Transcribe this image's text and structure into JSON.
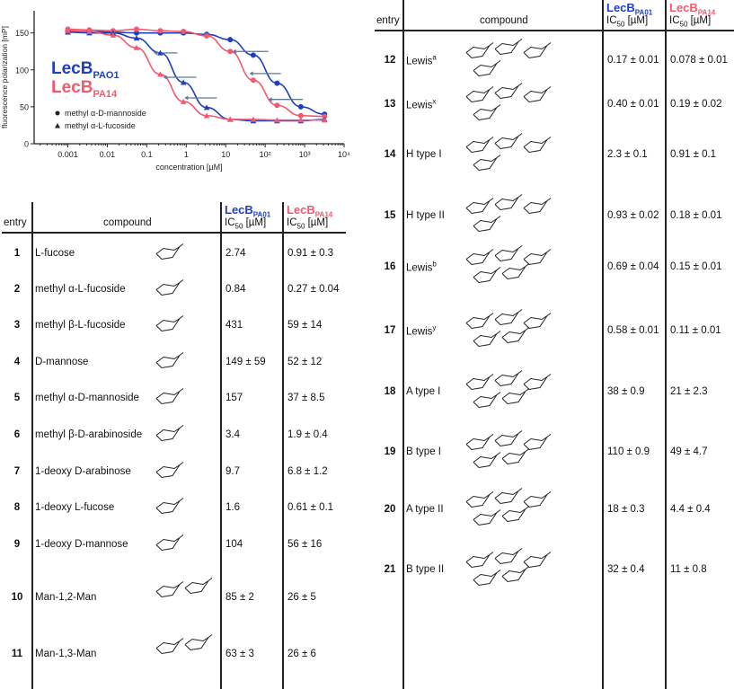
{
  "chart_data": {
    "type": "scatter",
    "xlabel": "concentration [µM]",
    "ylabel": "fluorescence polarization [mP]",
    "xscale": "log",
    "xlim": [
      0.00014,
      10000
    ],
    "ylim": [
      0,
      180
    ],
    "xticks": [
      "0.001",
      "0.01",
      "0.1",
      "1",
      "10",
      "10²",
      "10³",
      "10⁴"
    ],
    "yticks": [
      "0",
      "50",
      "100",
      "150"
    ],
    "grid": false,
    "legend_placement": "left",
    "legend_lectins": [
      {
        "label": "LecB",
        "sub": "PAO1",
        "color": "#1f3fbf"
      },
      {
        "label": "LecB",
        "sub": "PA14",
        "color": "#f05a6e"
      }
    ],
    "legend_markers": [
      {
        "marker": "circle",
        "label": "methyl α-D-mannoside"
      },
      {
        "marker": "triangle",
        "label": "methyl α-L-fucoside"
      }
    ],
    "x": [
      0.001,
      0.0035,
      0.014,
      0.055,
      0.22,
      0.85,
      3.3,
      13,
      50,
      200,
      800,
      3200
    ],
    "series": [
      {
        "lectin": "PAO1",
        "compound": "methyl α-D-mannoside",
        "marker": "circle",
        "color": "#1f3fbf",
        "values": [
          152,
          152,
          151,
          150,
          150,
          150,
          148,
          141,
          120,
          82,
          50,
          40
        ]
      },
      {
        "lectin": "PA14",
        "compound": "methyl α-D-mannoside",
        "marker": "circle",
        "color": "#f05a6e",
        "values": [
          155,
          154,
          153,
          155,
          153,
          152,
          146,
          125,
          86,
          52,
          38,
          37
        ]
      },
      {
        "lectin": "PAO1",
        "compound": "methyl α-L-fucoside",
        "marker": "triangle",
        "color": "#1f3fbf",
        "values": [
          151,
          150,
          150,
          143,
          123,
          83,
          49,
          33,
          31,
          31,
          31,
          33
        ]
      },
      {
        "lectin": "PA14",
        "compound": "methyl α-L-fucoside",
        "marker": "triangle",
        "color": "#f05a6e",
        "values": [
          153,
          152,
          147,
          130,
          94,
          57,
          38,
          33,
          33,
          32,
          32,
          32
        ]
      }
    ]
  },
  "table_header": {
    "entry": "entry",
    "compound": "compound",
    "lecb": "LecB",
    "pa01": "PA01",
    "pa14": "PA14",
    "ic50": "IC",
    "ic50_sub": "50",
    "unit": " [µM]"
  },
  "left_rows": [
    {
      "entry": "1",
      "compound": "L-fucose",
      "pa01": "2.74",
      "pa14": "0.91 ± 0.3",
      "rings": 1
    },
    {
      "entry": "2",
      "compound": "methyl α-L-fucoside",
      "pa01": "0.84",
      "pa14": "0.27 ± 0.04",
      "rings": 1
    },
    {
      "entry": "3",
      "compound": "methyl β-L-fucoside",
      "pa01": "431",
      "pa14": "59 ± 14",
      "rings": 1
    },
    {
      "entry": "4",
      "compound": "D-mannose",
      "pa01": "149 ± 59",
      "pa14": "52 ± 12",
      "rings": 1
    },
    {
      "entry": "5",
      "compound": "methyl α-D-mannoside",
      "pa01": "157",
      "pa14": "37 ± 8.5",
      "rings": 1
    },
    {
      "entry": "6",
      "compound": "methyl β-D-arabinoside",
      "pa01": "3.4",
      "pa14": "1.9 ± 0.4",
      "rings": 1
    },
    {
      "entry": "7",
      "compound": "1-deoxy D-arabinose",
      "pa01": "9.7",
      "pa14": "6.8 ± 1.2",
      "rings": 1
    },
    {
      "entry": "8",
      "compound": "1-deoxy L-fucose",
      "pa01": "1.6",
      "pa14": "0.61 ± 0.1",
      "rings": 1
    },
    {
      "entry": "9",
      "compound": "1-deoxy D-mannose",
      "pa01": "104",
      "pa14": "56 ± 16",
      "rings": 1
    },
    {
      "entry": "10",
      "compound": "Man-1,2-Man",
      "pa01": "85 ± 2",
      "pa14": "26 ± 5",
      "rings": 2
    },
    {
      "entry": "11",
      "compound": "Man-1,3-Man",
      "pa01": "63 ± 3",
      "pa14": "26 ± 6",
      "rings": 2
    }
  ],
  "right_rows": [
    {
      "entry": "12",
      "compound": "Lewis",
      "sup": "a",
      "pa01": "0.17 ± 0.01",
      "pa14": "0.078 ± 0.01",
      "rings": 4
    },
    {
      "entry": "13",
      "compound": "Lewis",
      "sup": "x",
      "pa01": "0.40 ± 0.01",
      "pa14": "0.19 ± 0.02",
      "rings": 4
    },
    {
      "entry": "14",
      "compound": "H type I",
      "sup": "",
      "pa01": "2.3 ± 0.1",
      "pa14": "0.91 ± 0.1",
      "rings": 4
    },
    {
      "entry": "15",
      "compound": "H type II",
      "sup": "",
      "pa01": "0.93 ± 0.02",
      "pa14": "0.18 ± 0.01",
      "rings": 4
    },
    {
      "entry": "16",
      "compound": "Lewis",
      "sup": "b",
      "pa01": "0.69 ± 0.04",
      "pa14": "0.15 ± 0.01",
      "rings": 5
    },
    {
      "entry": "17",
      "compound": "Lewis",
      "sup": "y",
      "pa01": "0.58 ± 0.01",
      "pa14": "0.11 ± 0.01",
      "rings": 5
    },
    {
      "entry": "18",
      "compound": "A type I",
      "sup": "",
      "pa01": "38 ± 0.9",
      "pa14": "21 ± 2.3",
      "rings": 5
    },
    {
      "entry": "19",
      "compound": "B type I",
      "sup": "",
      "pa01": "110 ± 0.9",
      "pa14": "49 ± 4.7",
      "rings": 5
    },
    {
      "entry": "20",
      "compound": "A type II",
      "sup": "",
      "pa01": "18 ± 0.3",
      "pa14": "4.4 ± 0.4",
      "rings": 5
    },
    {
      "entry": "21",
      "compound": "B type II",
      "sup": "",
      "pa01": "32 ± 0.4",
      "pa14": "11 ± 0.8",
      "rings": 5
    }
  ]
}
